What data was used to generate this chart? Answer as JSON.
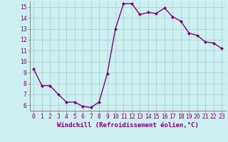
{
  "x": [
    0,
    1,
    2,
    3,
    4,
    5,
    6,
    7,
    8,
    9,
    10,
    11,
    12,
    13,
    14,
    15,
    16,
    17,
    18,
    19,
    20,
    21,
    22,
    23
  ],
  "y": [
    9.3,
    7.8,
    7.8,
    7.0,
    6.3,
    6.3,
    5.9,
    5.8,
    6.3,
    8.9,
    13.0,
    15.3,
    15.3,
    14.3,
    14.5,
    14.4,
    14.9,
    14.1,
    13.7,
    12.6,
    12.4,
    11.8,
    11.7,
    11.2
  ],
  "line_color": "#800080",
  "marker": "D",
  "marker_size": 2.0,
  "bg_color": "#ccf0f0",
  "grid_color": "#aacccc",
  "xlabel": "Windchill (Refroidissement éolien,°C)",
  "xlim": [
    -0.5,
    23.5
  ],
  "ylim": [
    5.5,
    15.5
  ],
  "yticks": [
    6,
    7,
    8,
    9,
    10,
    11,
    12,
    13,
    14,
    15
  ],
  "xticks": [
    0,
    1,
    2,
    3,
    4,
    5,
    6,
    7,
    8,
    9,
    10,
    11,
    12,
    13,
    14,
    15,
    16,
    17,
    18,
    19,
    20,
    21,
    22,
    23
  ],
  "xlabel_fontsize": 6.5,
  "tick_fontsize": 5.8,
  "line_width": 1.0,
  "label_color": "#800080",
  "spine_color": "#777777"
}
